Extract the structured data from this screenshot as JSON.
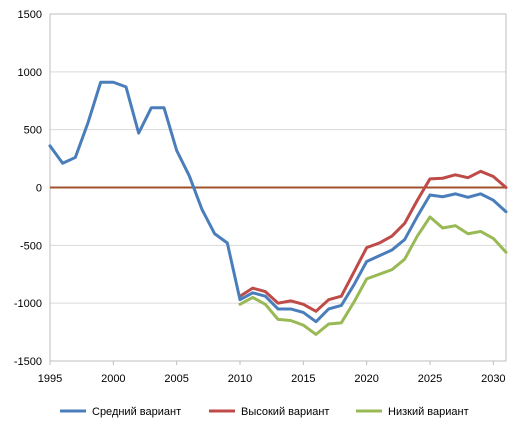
{
  "chart_data": {
    "type": "line",
    "title": "",
    "xlabel": "",
    "ylabel": "",
    "xlim": [
      1995,
      2031
    ],
    "ylim": [
      -1500,
      1500
    ],
    "x_ticks": [
      "1995",
      "2000",
      "2005",
      "2010",
      "2015",
      "2020",
      "2025",
      "2030"
    ],
    "y_ticks": [
      "1500",
      "1000",
      "500",
      "0",
      "-500",
      "-1000",
      "-1500"
    ],
    "grid": true,
    "legend_position": "bottom",
    "zero_line_color": "#a0522d",
    "series": [
      {
        "name": "Средний вариант",
        "color": "#4a7ebb",
        "x": [
          1995,
          1996,
          1997,
          1998,
          1999,
          2000,
          2001,
          2002,
          2003,
          2004,
          2005,
          2006,
          2007,
          2008,
          2009,
          2010,
          2011,
          2012,
          2013,
          2014,
          2015,
          2016,
          2017,
          2018,
          2019,
          2020,
          2021,
          2022,
          2023,
          2024,
          2025,
          2026,
          2027,
          2028,
          2029,
          2030,
          2031
        ],
        "values": [
          360,
          210,
          260,
          560,
          910,
          910,
          870,
          470,
          690,
          690,
          320,
          100,
          -190,
          -400,
          -480,
          -970,
          -910,
          -940,
          -1050,
          -1050,
          -1080,
          -1160,
          -1050,
          -1020,
          -840,
          -640,
          -590,
          -540,
          -450,
          -250,
          -65,
          -80,
          -55,
          -85,
          -55,
          -110,
          -210
        ]
      },
      {
        "name": "Высокий вариант",
        "color": "#be4b48",
        "x": [
          2010,
          2011,
          2012,
          2013,
          2014,
          2015,
          2016,
          2017,
          2018,
          2019,
          2020,
          2021,
          2022,
          2023,
          2024,
          2025,
          2026,
          2027,
          2028,
          2029,
          2030,
          2031
        ],
        "values": [
          -940,
          -870,
          -900,
          -1000,
          -980,
          -1010,
          -1070,
          -970,
          -940,
          -730,
          -520,
          -480,
          -420,
          -310,
          -110,
          75,
          80,
          110,
          85,
          140,
          95,
          0
        ]
      },
      {
        "name": "Низкий вариант",
        "color": "#98b954",
        "x": [
          2010,
          2011,
          2012,
          2013,
          2014,
          2015,
          2016,
          2017,
          2018,
          2019,
          2020,
          2021,
          2022,
          2023,
          2024,
          2025,
          2026,
          2027,
          2028,
          2029,
          2030,
          2031
        ],
        "values": [
          -1010,
          -950,
          -1010,
          -1140,
          -1150,
          -1190,
          -1270,
          -1180,
          -1170,
          -990,
          -790,
          -750,
          -710,
          -620,
          -420,
          -255,
          -350,
          -330,
          -400,
          -380,
          -440,
          -560
        ]
      }
    ]
  }
}
